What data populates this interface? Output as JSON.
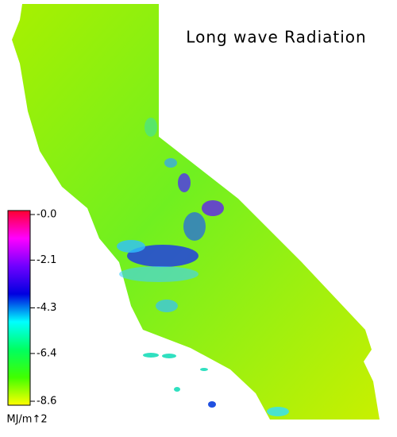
{
  "title": "Long wave Radiation",
  "colorbar": {
    "range": [
      -8.6,
      0
    ],
    "ticks": [
      {
        "value": 0,
        "label": "-0.0"
      },
      -2.1,
      -4.3,
      -6.4,
      -8.6
    ],
    "unit": "MJ/m↑2",
    "colors": [
      "#ff0030",
      "#ff00ff",
      "#7000ff",
      "#0000e0",
      "#00ffff",
      "#00ff60",
      "#40ff00",
      "#ffff00"
    ]
  }
}
